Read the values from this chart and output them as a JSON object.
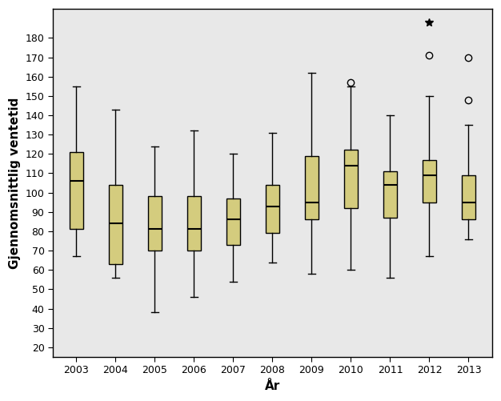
{
  "years": [
    2003,
    2004,
    2005,
    2006,
    2007,
    2008,
    2009,
    2010,
    2011,
    2012,
    2013
  ],
  "boxes": [
    {
      "q1": 81,
      "median": 106,
      "q3": 121,
      "whislo": 67,
      "whishi": 155,
      "fliers": []
    },
    {
      "q1": 63,
      "median": 84,
      "q3": 104,
      "whislo": 56,
      "whishi": 143,
      "fliers": []
    },
    {
      "q1": 70,
      "median": 81,
      "q3": 98,
      "whislo": 38,
      "whishi": 124,
      "fliers": []
    },
    {
      "q1": 70,
      "median": 81,
      "q3": 98,
      "whislo": 46,
      "whishi": 132,
      "fliers": []
    },
    {
      "q1": 73,
      "median": 86,
      "q3": 97,
      "whislo": 54,
      "whishi": 120,
      "fliers": []
    },
    {
      "q1": 79,
      "median": 93,
      "q3": 104,
      "whislo": 64,
      "whishi": 131,
      "fliers": []
    },
    {
      "q1": 86,
      "median": 95,
      "q3": 119,
      "whislo": 58,
      "whishi": 162,
      "fliers": []
    },
    {
      "q1": 92,
      "median": 114,
      "q3": 122,
      "whislo": 60,
      "whishi": 155,
      "fliers": [
        157
      ]
    },
    {
      "q1": 87,
      "median": 104,
      "q3": 111,
      "whislo": 56,
      "whishi": 140,
      "fliers": []
    },
    {
      "q1": 95,
      "median": 109,
      "q3": 117,
      "whislo": 67,
      "whishi": 150,
      "fliers": [
        171,
        188
      ]
    },
    {
      "q1": 86,
      "median": 95,
      "q3": 109,
      "whislo": 76,
      "whishi": 135,
      "fliers": [
        148,
        170
      ]
    }
  ],
  "ylabel": "Gjennomsnittlig ventetid",
  "xlabel": "År",
  "ylim": [
    15,
    195
  ],
  "yticks": [
    20,
    30,
    40,
    50,
    60,
    70,
    80,
    90,
    100,
    110,
    120,
    130,
    140,
    150,
    160,
    170,
    180
  ],
  "box_facecolor": "#d4cc7e",
  "box_edgecolor": "#000000",
  "whisker_color": "#000000",
  "median_color": "#000000",
  "plot_bg_color": "#e8e8e8",
  "fig_bg_color": "#ffffff",
  "box_width": 0.35,
  "ylabel_fontsize": 11,
  "xlabel_fontsize": 11,
  "tick_fontsize": 9
}
